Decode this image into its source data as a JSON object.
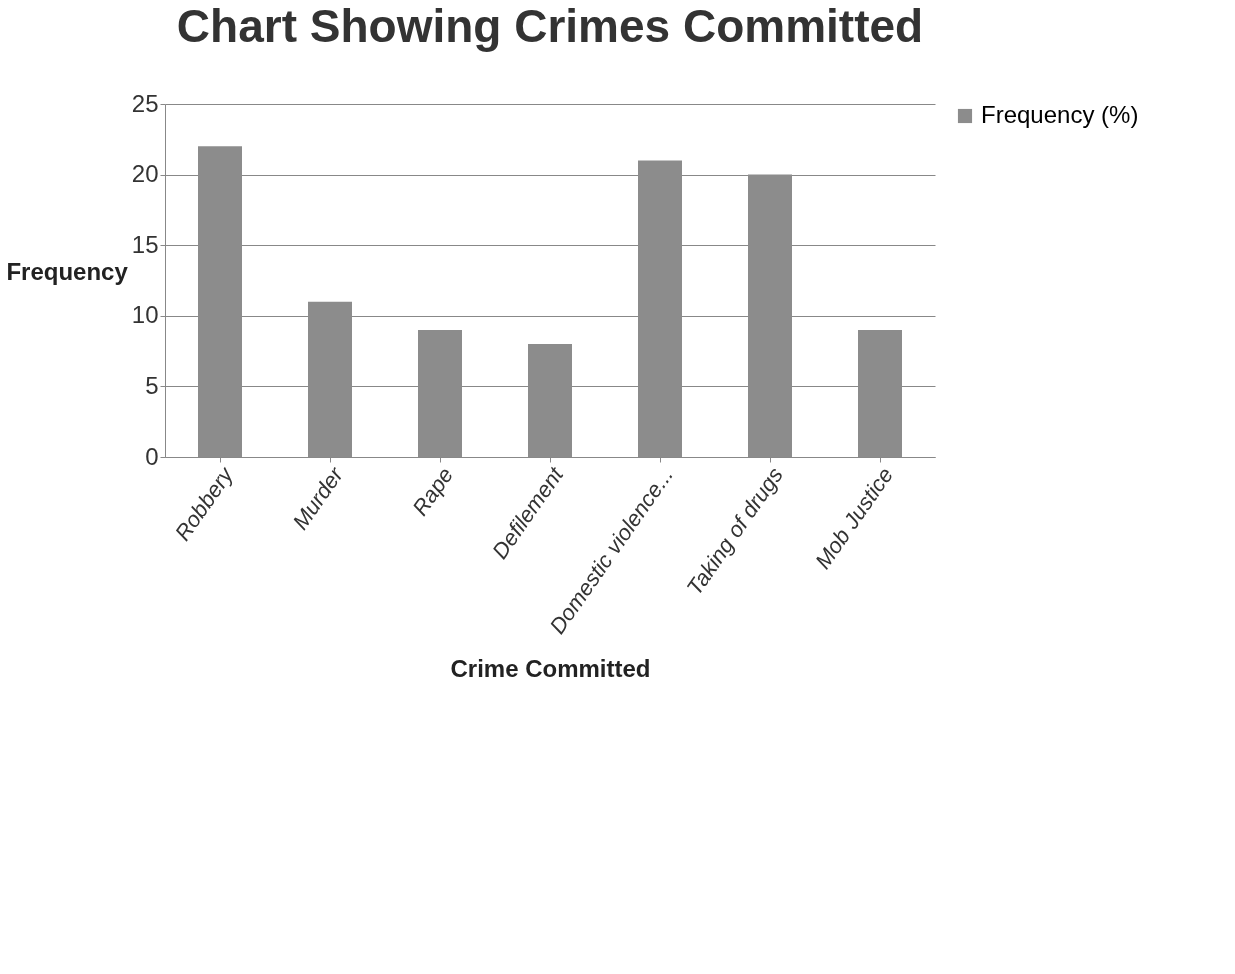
{
  "chart_data": {
    "type": "bar",
    "title": "Chart Showing Crimes Committed",
    "xlabel": "Crime Committed",
    "ylabel": "Frequency",
    "categories": [
      "Robbery",
      "Murder",
      "Rape",
      "Defilement",
      "Domestic violence...",
      "Taking of drugs",
      "Mob Justice"
    ],
    "series": [
      {
        "name": "Frequency (%)",
        "color": "#8c8c8c",
        "values": [
          22,
          11,
          9,
          8,
          21,
          20,
          9
        ]
      }
    ],
    "ylim": [
      0,
      25
    ],
    "yticks": [
      0,
      5,
      10,
      15,
      20,
      25
    ],
    "grid": "y",
    "legend": "right"
  }
}
